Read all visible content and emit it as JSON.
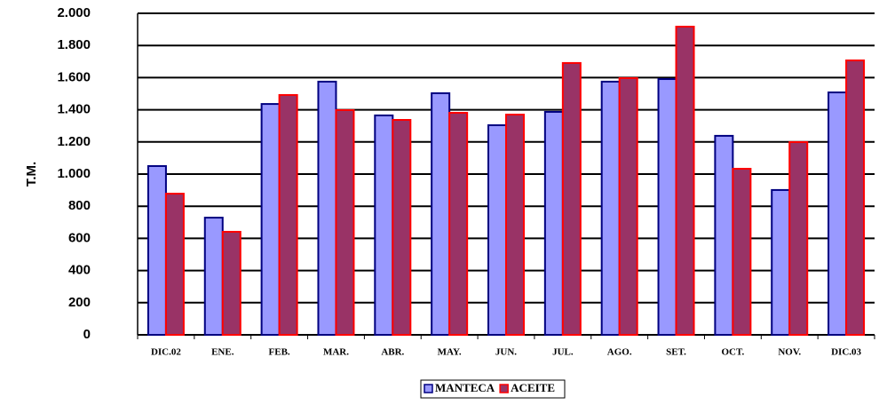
{
  "chart_data": {
    "type": "bar",
    "ylabel": "T.M.",
    "categories": [
      "DIC.02",
      "ENE.",
      "FEB.",
      "MAR.",
      "ABR.",
      "MAY.",
      "JUN.",
      "JUL.",
      "AGO.",
      "SET.",
      "OCT.",
      "NOV.",
      "DIC.03"
    ],
    "series": [
      {
        "name": "MANTECA",
        "color": "#9999ff",
        "stroke": "#000080",
        "values": [
          1050,
          729,
          1436,
          1575,
          1365,
          1503,
          1304,
          1387,
          1575,
          1591,
          1238,
          901,
          1508
        ]
      },
      {
        "name": "ACEITE",
        "color": "#993366",
        "stroke": "#ff0000",
        "values": [
          878,
          641,
          1492,
          1398,
          1337,
          1381,
          1370,
          1691,
          1597,
          1917,
          1033,
          1199,
          1707
        ]
      }
    ],
    "ylim": [
      0,
      2000
    ],
    "yticks": [
      0,
      200,
      400,
      600,
      800,
      {
        "value": 1000,
        "label": "1.000"
      },
      {
        "value": 1200,
        "label": "1.200"
      },
      {
        "value": 1400,
        "label": "1.400"
      },
      {
        "value": 1600,
        "label": "1.600"
      },
      {
        "value": 1800,
        "label": "1.800"
      },
      {
        "value": 2000,
        "label": "2.000"
      }
    ],
    "grid": true,
    "legend": "bottom"
  }
}
